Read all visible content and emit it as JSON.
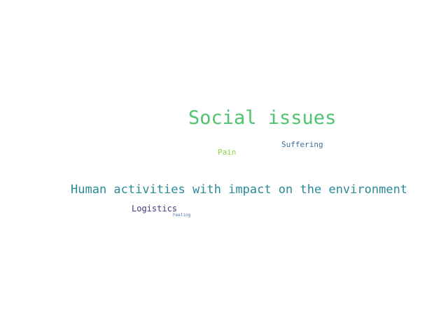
{
  "word_cloud": {
    "words": [
      {
        "id": "social",
        "text": "Social issues",
        "color": "#4fc370"
      },
      {
        "id": "suffering",
        "text": "Suffering",
        "color": "#3a6f9f"
      },
      {
        "id": "pain",
        "text": "Pain",
        "color": "#8fd643"
      },
      {
        "id": "human",
        "text": "Human activities with impact on the environment",
        "color": "#2a8a98"
      },
      {
        "id": "logistics",
        "text": "Logistics",
        "color": "#453781"
      },
      {
        "id": "feeling",
        "text": "Feeling",
        "color": "#4a6fa8"
      }
    ]
  }
}
